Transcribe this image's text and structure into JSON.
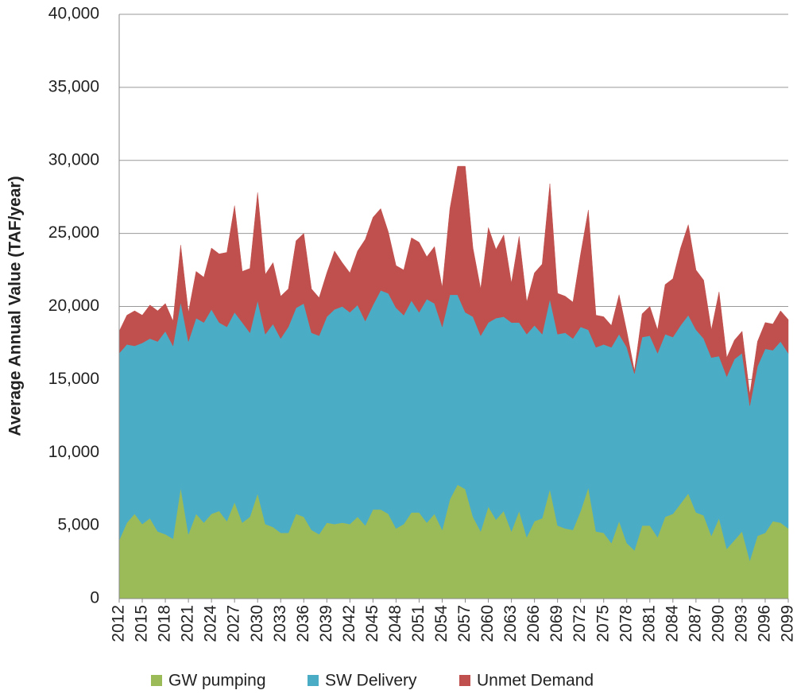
{
  "chart_data": {
    "type": "stacked_area",
    "y_label": "Average Annual Value (TAF/year)",
    "x": [
      2012,
      2013,
      2014,
      2015,
      2016,
      2017,
      2018,
      2019,
      2020,
      2021,
      2022,
      2023,
      2024,
      2025,
      2026,
      2027,
      2028,
      2029,
      2030,
      2031,
      2032,
      2033,
      2034,
      2035,
      2036,
      2037,
      2038,
      2039,
      2040,
      2041,
      2042,
      2043,
      2044,
      2045,
      2046,
      2047,
      2048,
      2049,
      2050,
      2051,
      2052,
      2053,
      2054,
      2055,
      2056,
      2057,
      2058,
      2059,
      2060,
      2061,
      2062,
      2063,
      2064,
      2065,
      2066,
      2067,
      2068,
      2069,
      2070,
      2071,
      2072,
      2073,
      2074,
      2075,
      2076,
      2077,
      2078,
      2079,
      2080,
      2081,
      2082,
      2083,
      2084,
      2085,
      2086,
      2087,
      2088,
      2089,
      2090,
      2091,
      2092,
      2093,
      2094,
      2095,
      2096,
      2097,
      2098,
      2099
    ],
    "xlim": [
      2012,
      2099
    ],
    "xticks": [
      2012,
      2015,
      2018,
      2021,
      2024,
      2027,
      2030,
      2033,
      2036,
      2039,
      2042,
      2045,
      2048,
      2051,
      2054,
      2057,
      2060,
      2063,
      2066,
      2069,
      2072,
      2075,
      2078,
      2081,
      2084,
      2087,
      2090,
      2093,
      2096,
      2099
    ],
    "ylim": [
      0,
      40000
    ],
    "yticks": [
      0,
      {
        "value": 5000,
        "label": "5,000"
      },
      {
        "value": 10000,
        "label": "10,000"
      },
      {
        "value": 15000,
        "label": "15,000"
      },
      {
        "value": 20000,
        "label": "20,000"
      },
      {
        "value": 25000,
        "label": "25,000"
      },
      {
        "value": 30000,
        "label": "30,000"
      },
      {
        "value": 35000,
        "label": "35,000"
      },
      {
        "value": 40000,
        "label": "40,000"
      }
    ],
    "grid": true,
    "series": [
      {
        "name": "GW pumping",
        "color": "#9bbb59",
        "values": [
          4000,
          5200,
          5800,
          5100,
          5500,
          4600,
          4400,
          4100,
          7600,
          4400,
          5800,
          5200,
          5800,
          6000,
          5300,
          6600,
          5200,
          5600,
          7200,
          5100,
          4900,
          4500,
          4500,
          5800,
          5600,
          4700,
          4400,
          5200,
          5100,
          5200,
          5100,
          5600,
          5000,
          6100,
          6100,
          5800,
          4800,
          5100,
          5900,
          5900,
          5200,
          5800,
          4700,
          6800,
          7800,
          7500,
          5600,
          4600,
          6300,
          5400,
          6000,
          4600,
          6000,
          4200,
          5300,
          5500,
          7500,
          5000,
          4800,
          4700,
          6000,
          7600,
          4600,
          4500,
          3800,
          5300,
          3800,
          3300,
          5000,
          5000,
          4200,
          5600,
          5800,
          6500,
          7200,
          5900,
          5700,
          4300,
          5500,
          3400,
          4000,
          4600,
          2600,
          4300,
          4500,
          5300,
          5200,
          4800
        ]
      },
      {
        "name": "SW Delivery",
        "color": "#4bacc6",
        "values": [
          12800,
          12200,
          11500,
          12400,
          12300,
          13000,
          13900,
          13200,
          12700,
          13200,
          13400,
          13700,
          14000,
          12900,
          13300,
          13000,
          13700,
          12600,
          13200,
          13000,
          13900,
          13300,
          14100,
          14100,
          14600,
          13500,
          13600,
          14100,
          14700,
          14800,
          14500,
          14500,
          14000,
          14000,
          15000,
          15100,
          15100,
          14300,
          14500,
          13700,
          15300,
          14400,
          13900,
          14000,
          13000,
          12100,
          13700,
          13400,
          12600,
          13800,
          13300,
          14300,
          12900,
          13900,
          13400,
          12600,
          13000,
          13100,
          13400,
          13100,
          12600,
          10800,
          12600,
          12900,
          13400,
          12800,
          13400,
          12100,
          12900,
          13000,
          12600,
          12500,
          12100,
          12200,
          12200,
          12500,
          12100,
          12200,
          11100,
          11800,
          12400,
          12200,
          10600,
          11600,
          12600,
          11700,
          12400,
          12000
        ]
      },
      {
        "name": "Unmet Demand",
        "color": "#c0504d",
        "values": [
          1500,
          2000,
          2400,
          1900,
          2300,
          2100,
          1900,
          1700,
          3900,
          2000,
          3200,
          3100,
          4200,
          4700,
          5100,
          7300,
          3500,
          4400,
          7400,
          4100,
          4200,
          2900,
          2600,
          4600,
          4800,
          3000,
          2600,
          3000,
          4000,
          3000,
          2700,
          3700,
          5600,
          6000,
          5600,
          4200,
          2900,
          3100,
          4300,
          4800,
          2900,
          3900,
          2700,
          5900,
          8800,
          10000,
          4700,
          3200,
          6500,
          4700,
          5600,
          2700,
          5900,
          2200,
          3600,
          4800,
          7900,
          2800,
          2500,
          2500,
          5000,
          8200,
          2200,
          1900,
          1500,
          2700,
          1100,
          200,
          1600,
          2000,
          1600,
          3400,
          4000,
          5300,
          6200,
          4100,
          4000,
          1900,
          4400,
          1300,
          1300,
          1500,
          800,
          1700,
          1800,
          1800,
          2100,
          2300
        ]
      }
    ]
  }
}
